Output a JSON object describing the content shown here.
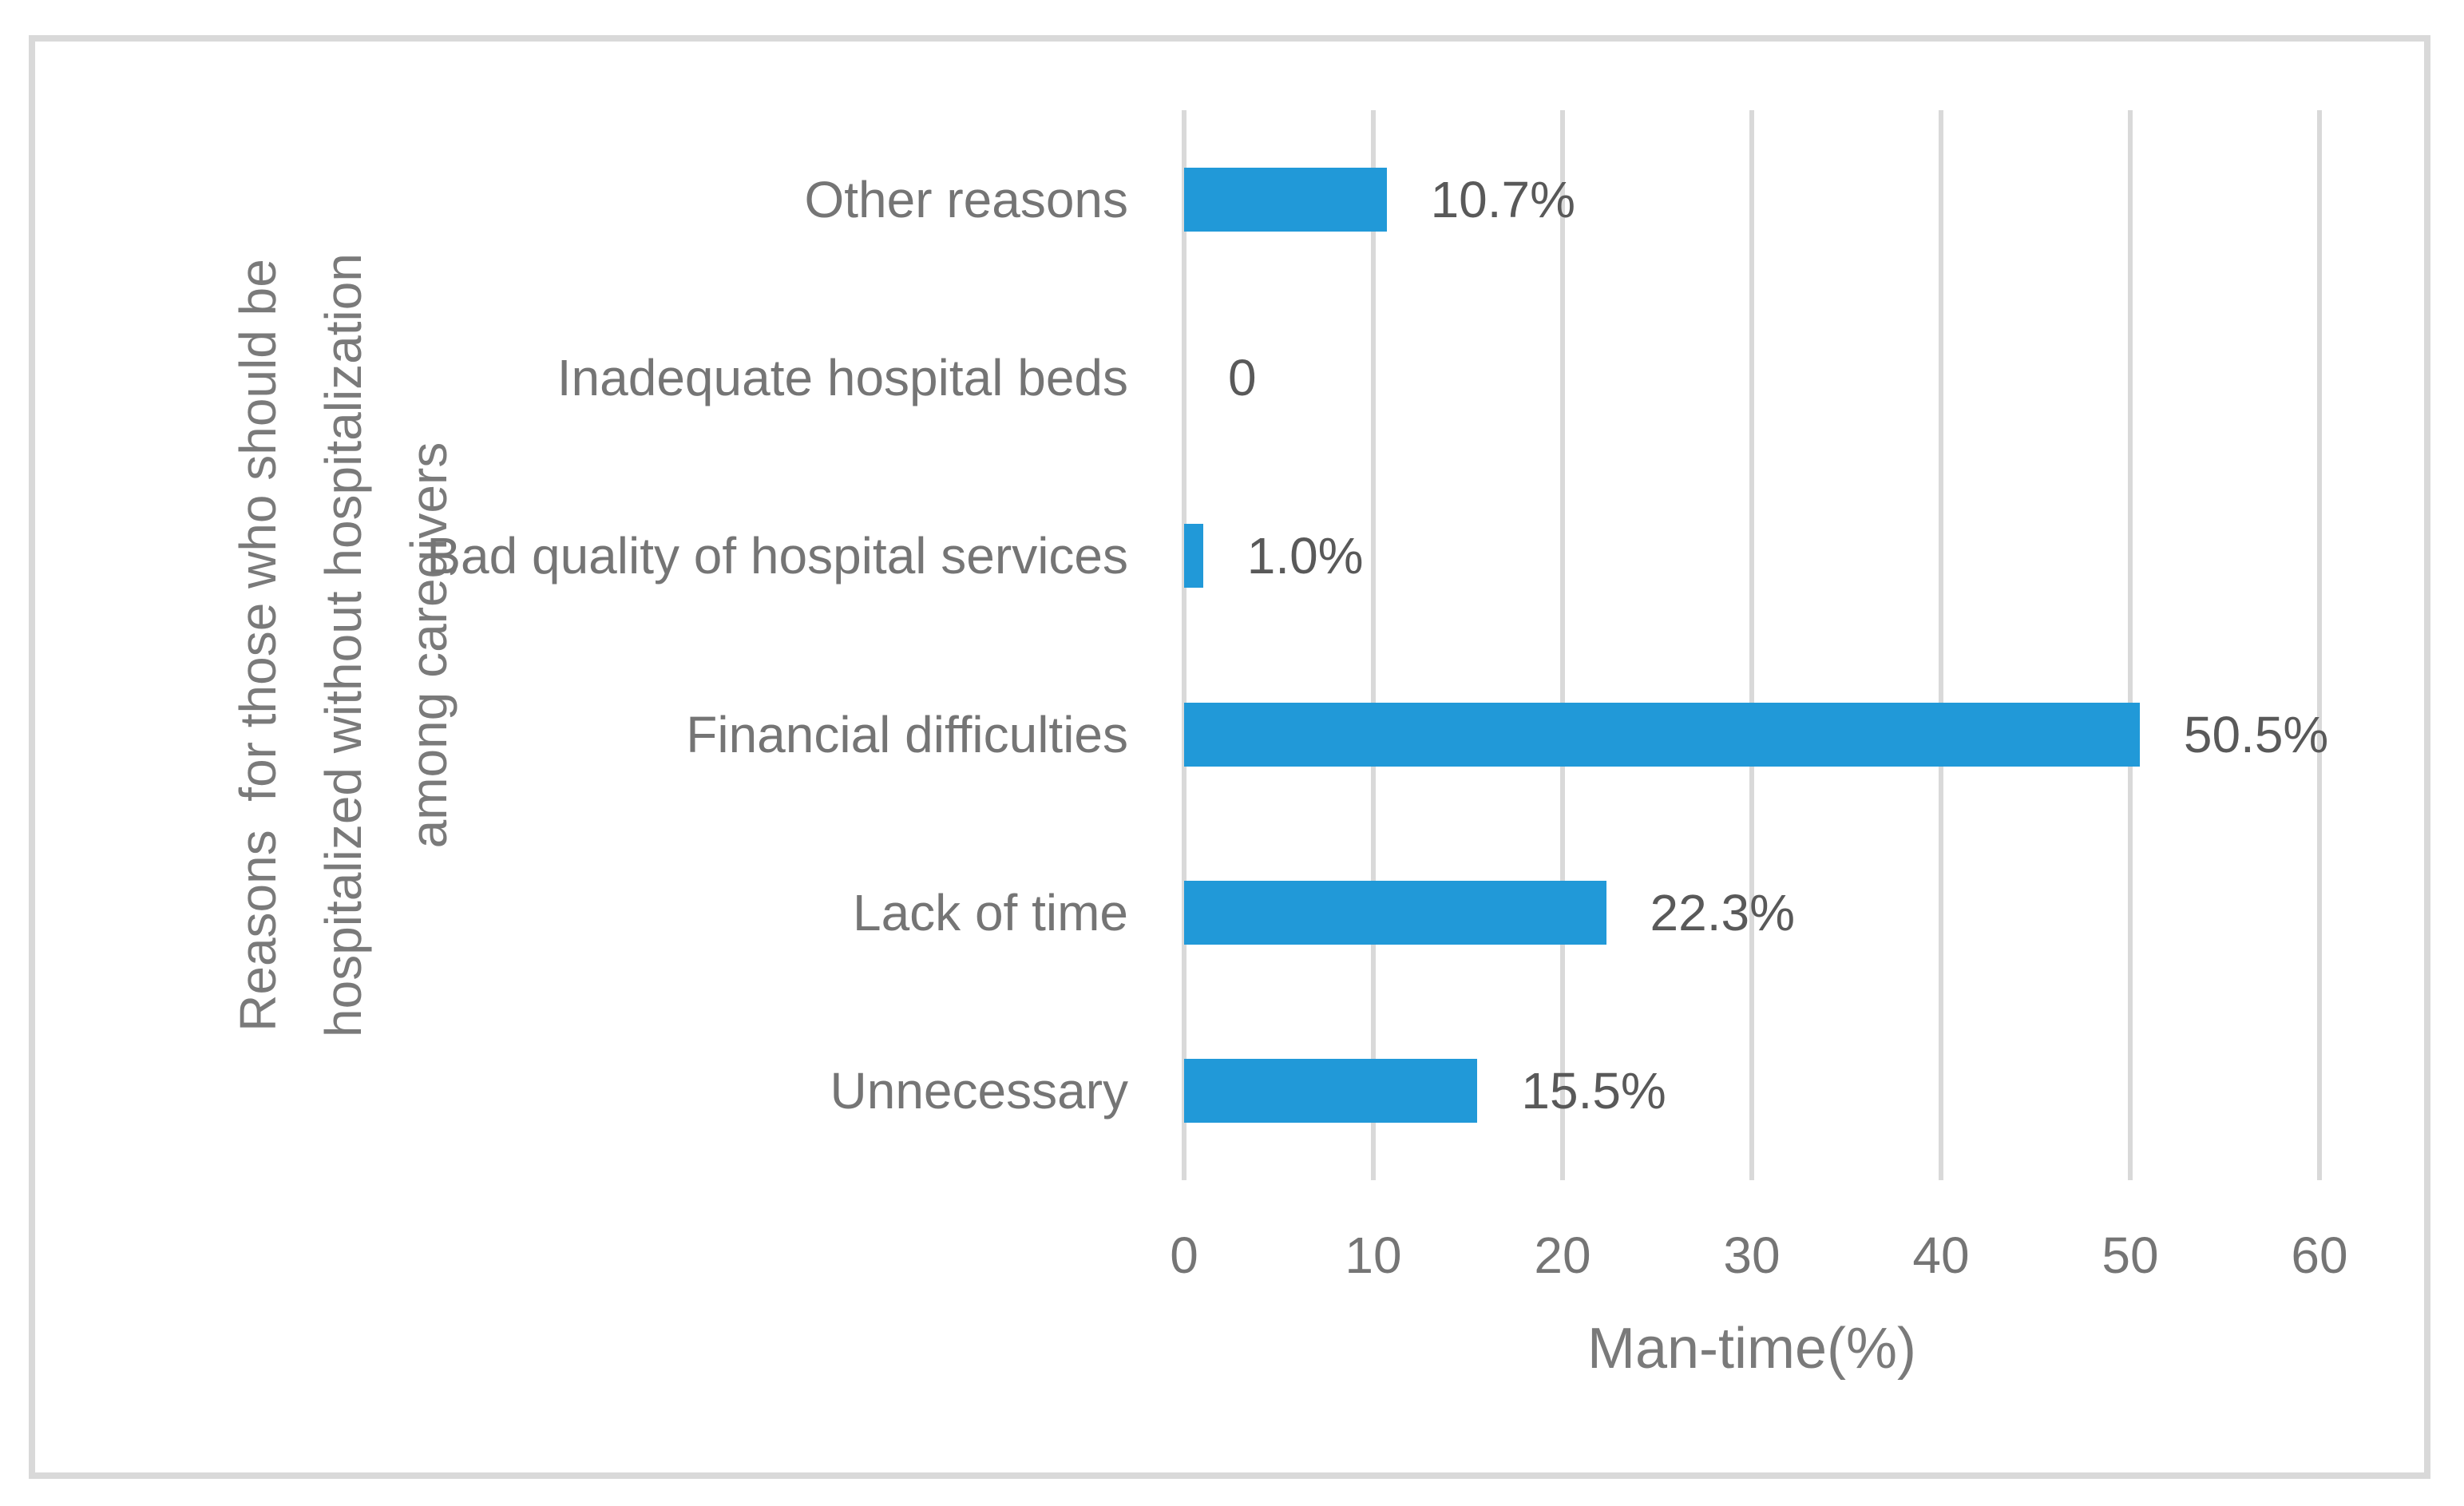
{
  "chart_data": {
    "type": "bar",
    "orientation": "horizontal",
    "title": "",
    "categories": [
      "Other reasons",
      "Inadequate hospital beds",
      "Bad quality of hospital services",
      "Financial difficulties",
      "Lack of time",
      "Unnecessary"
    ],
    "values": [
      10.7,
      0,
      1.0,
      50.5,
      22.3,
      15.5
    ],
    "data_labels": [
      "10.7%",
      "0",
      "1.0%",
      "50.5%",
      "22.3%",
      "15.5%"
    ],
    "xlabel": "Man-time(%)",
    "ylabel_lines": [
      "Reasons  for those who should be",
      "hospitalized without hospitalization",
      "among caregivers"
    ],
    "x_ticks": [
      "0",
      "10",
      "20",
      "30",
      "40",
      "50",
      "60"
    ],
    "xlim": [
      0,
      60
    ],
    "grid": "vertical-gridlines",
    "legend": "none"
  },
  "colors": {
    "bar": "#2199d8",
    "gridline": "#d9d9d9",
    "frame_border": "#d9d9d9",
    "category_text": "#757575",
    "data_label_text": "#595959",
    "tick_text": "#757575",
    "axis_title_text": "#7a7a7a",
    "background": "#ffffff"
  }
}
